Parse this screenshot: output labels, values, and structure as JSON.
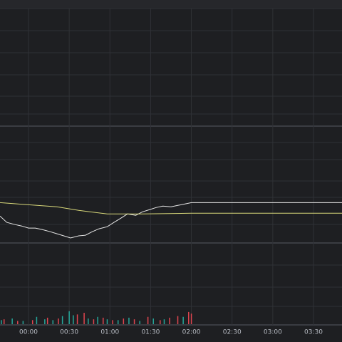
{
  "chart_data": [
    {
      "type": "line",
      "xlim": [
        -21,
        231
      ],
      "ylim": [
        0,
        100
      ],
      "series": [
        {
          "color": "#e6e6e6",
          "x": [
            -21,
            -16,
            -10,
            -5,
            0,
            5,
            10,
            16,
            21,
            26,
            31,
            37,
            42,
            47,
            52,
            58,
            63,
            68,
            73,
            79,
            84,
            89,
            94,
            99,
            105,
            110,
            115,
            120,
            231
          ],
          "values": [
            22.6,
            17.1,
            15.2,
            14.0,
            12.2,
            12.2,
            11.0,
            9.1,
            7.3,
            5.5,
            3.7,
            5.5,
            6.1,
            9.1,
            11.6,
            13.4,
            17.1,
            20.7,
            24.4,
            23.2,
            26.2,
            28.0,
            29.9,
            31.1,
            30.5,
            31.7,
            32.9,
            34.1,
            34.1
          ]
        },
        {
          "color": "#d8d87a",
          "x": [
            -21,
            0,
            21,
            37,
            58,
            84,
            120,
            231
          ],
          "values": [
            34.1,
            32.3,
            30.5,
            27.4,
            24.4,
            24.4,
            25.0,
            25.0
          ]
        }
      ]
    },
    {
      "type": "bar",
      "xlim": [
        -21,
        231
      ],
      "ylim": [
        0,
        100
      ],
      "xticks": [
        {
          "value": 0,
          "label": "00:00"
        },
        {
          "value": 30,
          "label": "00:30"
        },
        {
          "value": 60,
          "label": "01:00"
        },
        {
          "value": 90,
          "label": "01:30"
        },
        {
          "value": 120,
          "label": "02:00"
        },
        {
          "value": 150,
          "label": "02:30"
        },
        {
          "value": 180,
          "label": "03:00"
        },
        {
          "value": 210,
          "label": "03:30"
        }
      ],
      "series": [
        {
          "color": "#e0454f",
          "x": [
            -18,
            -8,
            3,
            14,
            22,
            36,
            41,
            48,
            55,
            62,
            70,
            78,
            88,
            97,
            104,
            110,
            118,
            120
          ],
          "values": [
            6,
            4,
            5,
            8,
            7,
            12,
            14,
            6,
            8,
            5,
            7,
            6,
            9,
            5,
            8,
            10,
            15,
            13
          ]
        },
        {
          "color": "#26a69a",
          "x": [
            -20,
            -12,
            -4,
            6,
            12,
            18,
            25,
            30,
            33,
            44,
            51,
            58,
            66,
            74,
            82,
            92,
            100,
            114
          ],
          "values": [
            5,
            7,
            4,
            9,
            6,
            5,
            10,
            16,
            11,
            7,
            9,
            6,
            5,
            8,
            4,
            7,
            6,
            9
          ]
        }
      ]
    }
  ]
}
